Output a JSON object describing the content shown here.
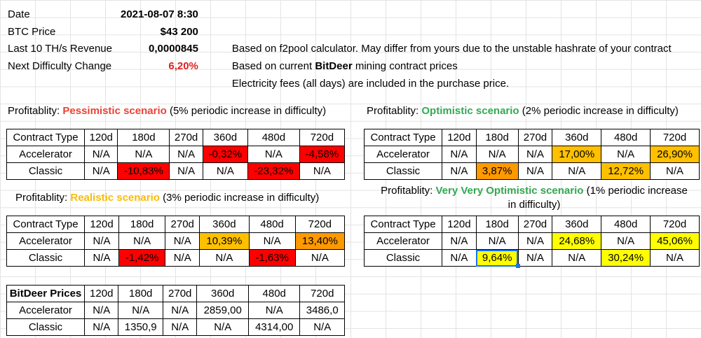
{
  "info": {
    "date": {
      "label": "Date",
      "value": "2021-08-07 8:30"
    },
    "btc_price": {
      "label": "BTC Price",
      "value": "$43 200"
    },
    "revenue": {
      "label": "Last 10 TH/s Revenue",
      "value": "0,0000845",
      "note": "Based on f2pool calculator. May differ from yours due to the unstable hashrate of your contract"
    },
    "difficulty": {
      "label": "Next Difficulty Change",
      "value": "6,20%",
      "note_pre": "Based on current ",
      "note_bold": "BitDeer",
      "note_post": " mining contract prices"
    },
    "fees_note": "Electricity fees (all days) are included in the purchase price."
  },
  "headers": [
    "Contract Type",
    "120d",
    "180d",
    "270d",
    "360d",
    "480d",
    "720d"
  ],
  "pessimistic": {
    "title_pre": "Profitablity: ",
    "title_name": "Pessimistic scenario",
    "title_post": " (5% periodic increase in difficulty)",
    "rows": [
      [
        "Accelerator",
        "N/A",
        "N/A",
        "N/A",
        "-0,32%",
        "N/A",
        "-4,58%"
      ],
      [
        "Classic",
        "N/A",
        "-10,83%",
        "N/A",
        "N/A",
        "-23,32%",
        "N/A"
      ]
    ]
  },
  "optimistic": {
    "title_pre": "Profitablity: ",
    "title_name": "Optimistic scenario",
    "title_post": " (2% periodic increase in difficulty)",
    "rows": [
      [
        "Accelerator",
        "N/A",
        "N/A",
        "N/A",
        "17,00%",
        "N/A",
        "26,90%"
      ],
      [
        "Classic",
        "N/A",
        "3,87%",
        "N/A",
        "N/A",
        "12,72%",
        "N/A"
      ]
    ]
  },
  "realistic": {
    "title_pre": "Profitablity: ",
    "title_name": "Realistic scenario",
    "title_post": " (3% periodic increase in difficulty)",
    "rows": [
      [
        "Accelerator",
        "N/A",
        "N/A",
        "N/A",
        "10,39%",
        "N/A",
        "13,40%"
      ],
      [
        "Classic",
        "N/A",
        "-1,42%",
        "N/A",
        "N/A",
        "-1,63%",
        "N/A"
      ]
    ]
  },
  "very_optimistic": {
    "title_pre": "Profitablity: ",
    "title_name": "Very Very Optimistic scenario",
    "title_post": " (1% periodic increase",
    "title_line2": "in difficulty)",
    "rows": [
      [
        "Accelerator",
        "N/A",
        "N/A",
        "N/A",
        "24,68%",
        "N/A",
        "45,06%"
      ],
      [
        "Classic",
        "N/A",
        "9,64%",
        "N/A",
        "N/A",
        "30,24%",
        "N/A"
      ]
    ]
  },
  "prices": {
    "headers": [
      "BitDeer Prices",
      "120d",
      "180d",
      "270d",
      "360d",
      "480d",
      "720d"
    ],
    "rows": [
      [
        "Accelerator",
        "N/A",
        "N/A",
        "N/A",
        "2859,00",
        "N/A",
        "3486,0"
      ],
      [
        "Classic",
        "N/A",
        "1350,9",
        "N/A",
        "N/A",
        "4314,00",
        "N/A"
      ]
    ]
  },
  "colors": {
    "red": "#ff0000",
    "orange": "#ff9900",
    "amber": "#ffc000",
    "yellow": "#ffff00",
    "selection": "#1a73e8"
  }
}
